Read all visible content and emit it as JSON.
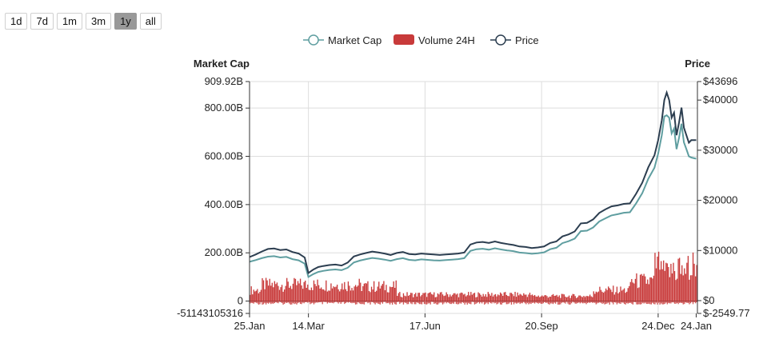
{
  "range_buttons": [
    {
      "label": "1d",
      "active": false
    },
    {
      "label": "7d",
      "active": false
    },
    {
      "label": "1m",
      "active": false
    },
    {
      "label": "3m",
      "active": false
    },
    {
      "label": "1y",
      "active": true
    },
    {
      "label": "all",
      "active": false
    }
  ],
  "chart_data": {
    "type": "line",
    "title": "",
    "legend": [
      {
        "name": "Market Cap",
        "color": "#5f9ea0",
        "kind": "line"
      },
      {
        "name": "Volume 24H",
        "color": "#c83a3a",
        "kind": "bar"
      },
      {
        "name": "Price",
        "color": "#2c3e50",
        "kind": "line"
      }
    ],
    "left_axis": {
      "title": "Market Cap",
      "min": -51143105316,
      "max": 909920000000,
      "ticks": [
        {
          "v": 909920000000,
          "label": "909.92B"
        },
        {
          "v": 800000000000,
          "label": "800.00B"
        },
        {
          "v": 600000000000,
          "label": "600.00B"
        },
        {
          "v": 400000000000,
          "label": "400.00B"
        },
        {
          "v": 200000000000,
          "label": "200.00B"
        },
        {
          "v": 0,
          "label": "0"
        },
        {
          "v": -51143105316,
          "label": "-51143105316"
        }
      ]
    },
    "right_axis": {
      "title": "Price",
      "min": -2549.77,
      "max": 43696,
      "ticks": [
        {
          "v": 43696,
          "label": "$43696"
        },
        {
          "v": 40000,
          "label": "$40000"
        },
        {
          "v": 30000,
          "label": "$30000"
        },
        {
          "v": 20000,
          "label": "$20000"
        },
        {
          "v": 10000,
          "label": "$10000"
        },
        {
          "v": 0,
          "label": "$0"
        },
        {
          "v": -2549.77,
          "label": "$-2549.77"
        }
      ]
    },
    "x_ticks": [
      {
        "day": 0,
        "label": "25.Jan"
      },
      {
        "day": 48,
        "label": "14.Mar"
      },
      {
        "day": 143,
        "label": "17.Jun"
      },
      {
        "day": 238,
        "label": "20.Sep"
      },
      {
        "day": 333,
        "label": "24.Dec"
      },
      {
        "day": 364,
        "label": "24.Jan"
      }
    ],
    "x_domain": [
      0,
      365
    ],
    "price_series": [
      [
        0,
        8700
      ],
      [
        5,
        9200
      ],
      [
        10,
        9800
      ],
      [
        15,
        10300
      ],
      [
        20,
        10400
      ],
      [
        25,
        10100
      ],
      [
        30,
        10200
      ],
      [
        35,
        9700
      ],
      [
        40,
        9400
      ],
      [
        45,
        8600
      ],
      [
        48,
        5500
      ],
      [
        52,
        6200
      ],
      [
        56,
        6700
      ],
      [
        60,
        6900
      ],
      [
        65,
        7100
      ],
      [
        70,
        7200
      ],
      [
        75,
        7000
      ],
      [
        80,
        7600
      ],
      [
        85,
        8800
      ],
      [
        90,
        9200
      ],
      [
        95,
        9500
      ],
      [
        100,
        9800
      ],
      [
        105,
        9600
      ],
      [
        110,
        9400
      ],
      [
        115,
        9100
      ],
      [
        120,
        9500
      ],
      [
        125,
        9700
      ],
      [
        130,
        9300
      ],
      [
        135,
        9200
      ],
      [
        140,
        9400
      ],
      [
        145,
        9300
      ],
      [
        150,
        9200
      ],
      [
        155,
        9100
      ],
      [
        160,
        9200
      ],
      [
        165,
        9300
      ],
      [
        170,
        9400
      ],
      [
        175,
        9600
      ],
      [
        180,
        11200
      ],
      [
        185,
        11600
      ],
      [
        190,
        11700
      ],
      [
        195,
        11500
      ],
      [
        200,
        11800
      ],
      [
        205,
        11500
      ],
      [
        210,
        11300
      ],
      [
        215,
        11100
      ],
      [
        220,
        10800
      ],
      [
        225,
        10700
      ],
      [
        230,
        10500
      ],
      [
        235,
        10600
      ],
      [
        240,
        10800
      ],
      [
        245,
        11500
      ],
      [
        250,
        11800
      ],
      [
        255,
        12800
      ],
      [
        260,
        13200
      ],
      [
        265,
        13800
      ],
      [
        270,
        15400
      ],
      [
        275,
        15500
      ],
      [
        280,
        16200
      ],
      [
        285,
        17500
      ],
      [
        290,
        18200
      ],
      [
        295,
        18800
      ],
      [
        300,
        19000
      ],
      [
        305,
        19300
      ],
      [
        310,
        19400
      ],
      [
        315,
        21300
      ],
      [
        320,
        23500
      ],
      [
        325,
        26600
      ],
      [
        330,
        29000
      ],
      [
        333,
        32000
      ],
      [
        336,
        36000
      ],
      [
        338,
        40000
      ],
      [
        340,
        41500
      ],
      [
        342,
        40000
      ],
      [
        344,
        36500
      ],
      [
        346,
        37500
      ],
      [
        348,
        33000
      ],
      [
        350,
        35500
      ],
      [
        352,
        38500
      ],
      [
        354,
        34500
      ],
      [
        356,
        33000
      ],
      [
        358,
        31500
      ],
      [
        360,
        32000
      ],
      [
        364,
        32000
      ]
    ],
    "market_cap_series": [
      [
        0,
        163000000000
      ],
      [
        5,
        170000000000
      ],
      [
        10,
        178000000000
      ],
      [
        15,
        184000000000
      ],
      [
        20,
        186000000000
      ],
      [
        25,
        181000000000
      ],
      [
        30,
        183000000000
      ],
      [
        35,
        174000000000
      ],
      [
        40,
        169000000000
      ],
      [
        45,
        155000000000
      ],
      [
        48,
        100000000000
      ],
      [
        52,
        112000000000
      ],
      [
        56,
        121000000000
      ],
      [
        60,
        125000000000
      ],
      [
        65,
        129000000000
      ],
      [
        70,
        131000000000
      ],
      [
        75,
        128000000000
      ],
      [
        80,
        138000000000
      ],
      [
        85,
        160000000000
      ],
      [
        90,
        168000000000
      ],
      [
        95,
        174000000000
      ],
      [
        100,
        179000000000
      ],
      [
        105,
        176000000000
      ],
      [
        110,
        172000000000
      ],
      [
        115,
        167000000000
      ],
      [
        120,
        174000000000
      ],
      [
        125,
        178000000000
      ],
      [
        130,
        171000000000
      ],
      [
        135,
        169000000000
      ],
      [
        140,
        173000000000
      ],
      [
        145,
        171000000000
      ],
      [
        150,
        169000000000
      ],
      [
        155,
        168000000000
      ],
      [
        160,
        170000000000
      ],
      [
        165,
        172000000000
      ],
      [
        170,
        174000000000
      ],
      [
        175,
        178000000000
      ],
      [
        180,
        208000000000
      ],
      [
        185,
        215000000000
      ],
      [
        190,
        217000000000
      ],
      [
        195,
        213000000000
      ],
      [
        200,
        219000000000
      ],
      [
        205,
        214000000000
      ],
      [
        210,
        210000000000
      ],
      [
        215,
        207000000000
      ],
      [
        220,
        201000000000
      ],
      [
        225,
        199000000000
      ],
      [
        230,
        196000000000
      ],
      [
        235,
        198000000000
      ],
      [
        240,
        202000000000
      ],
      [
        245,
        215000000000
      ],
      [
        250,
        221000000000
      ],
      [
        255,
        240000000000
      ],
      [
        260,
        248000000000
      ],
      [
        265,
        259000000000
      ],
      [
        270,
        290000000000
      ],
      [
        275,
        292000000000
      ],
      [
        280,
        305000000000
      ],
      [
        285,
        330000000000
      ],
      [
        290,
        343000000000
      ],
      [
        295,
        355000000000
      ],
      [
        300,
        360000000000
      ],
      [
        305,
        366000000000
      ],
      [
        310,
        368000000000
      ],
      [
        315,
        405000000000
      ],
      [
        320,
        447000000000
      ],
      [
        325,
        507000000000
      ],
      [
        330,
        553000000000
      ],
      [
        333,
        611000000000
      ],
      [
        336,
        688000000000
      ],
      [
        338,
        765000000000
      ],
      [
        340,
        770000000000
      ],
      [
        342,
        760000000000
      ],
      [
        344,
        695000000000
      ],
      [
        346,
        715000000000
      ],
      [
        348,
        630000000000
      ],
      [
        350,
        677000000000
      ],
      [
        352,
        735000000000
      ],
      [
        354,
        658000000000
      ],
      [
        356,
        630000000000
      ],
      [
        358,
        600000000000
      ],
      [
        360,
        595000000000
      ],
      [
        364,
        590000000000
      ]
    ],
    "volume_note": "daily bars, values in USD (left axis)"
  }
}
